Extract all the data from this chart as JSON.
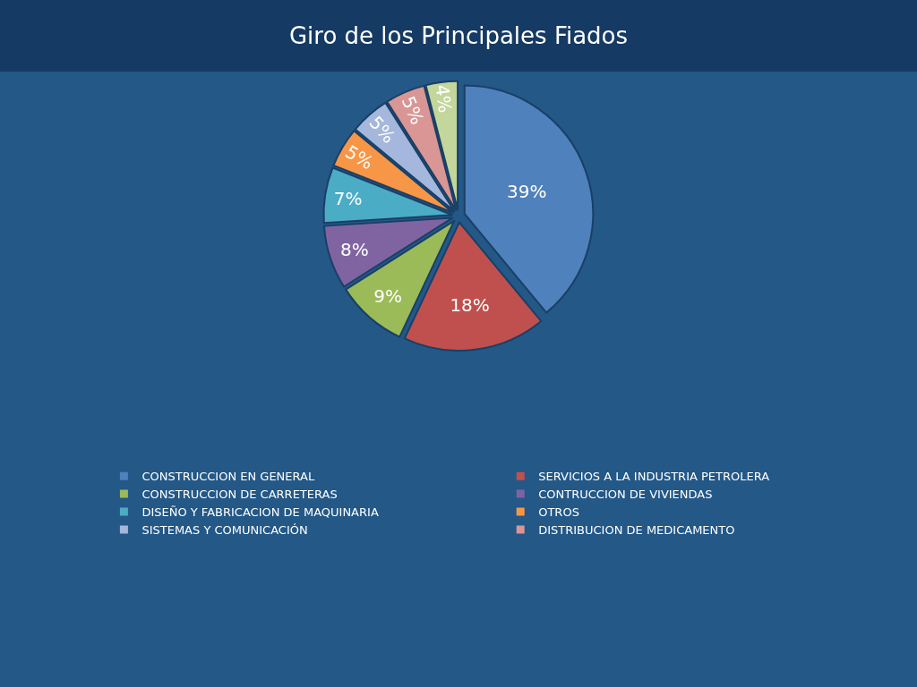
{
  "chart_data": {
    "type": "pie",
    "title": "Giro de los Principales Fiados",
    "categories": [
      "CONSTRUCCION EN GENERAL",
      "SERVICIOS A LA INDUSTRIA PETROLERA",
      "CONSTRUCCION DE CARRETERAS",
      "CONTRUCCION DE VIVIENDAS",
      "DISEÑO Y FABRICACION DE MAQUINARIA",
      "OTROS",
      "SISTEMAS Y COMUNICACIÓN",
      "DISTRIBUCION DE MEDICAMENTO",
      null
    ],
    "values": [
      39,
      18,
      9,
      8,
      7,
      5,
      5,
      5,
      4
    ],
    "value_labels": [
      "39%",
      "18%",
      "9%",
      "8%",
      "7%",
      "5%",
      "5%",
      "5%",
      "4%"
    ],
    "colors": [
      "#4f81bd",
      "#c0504d",
      "#9bbb59",
      "#8064a2",
      "#4bacc6",
      "#f79646",
      "#a5b7dc",
      "#d99694",
      "#c3d69b"
    ],
    "legend": "bottom"
  }
}
